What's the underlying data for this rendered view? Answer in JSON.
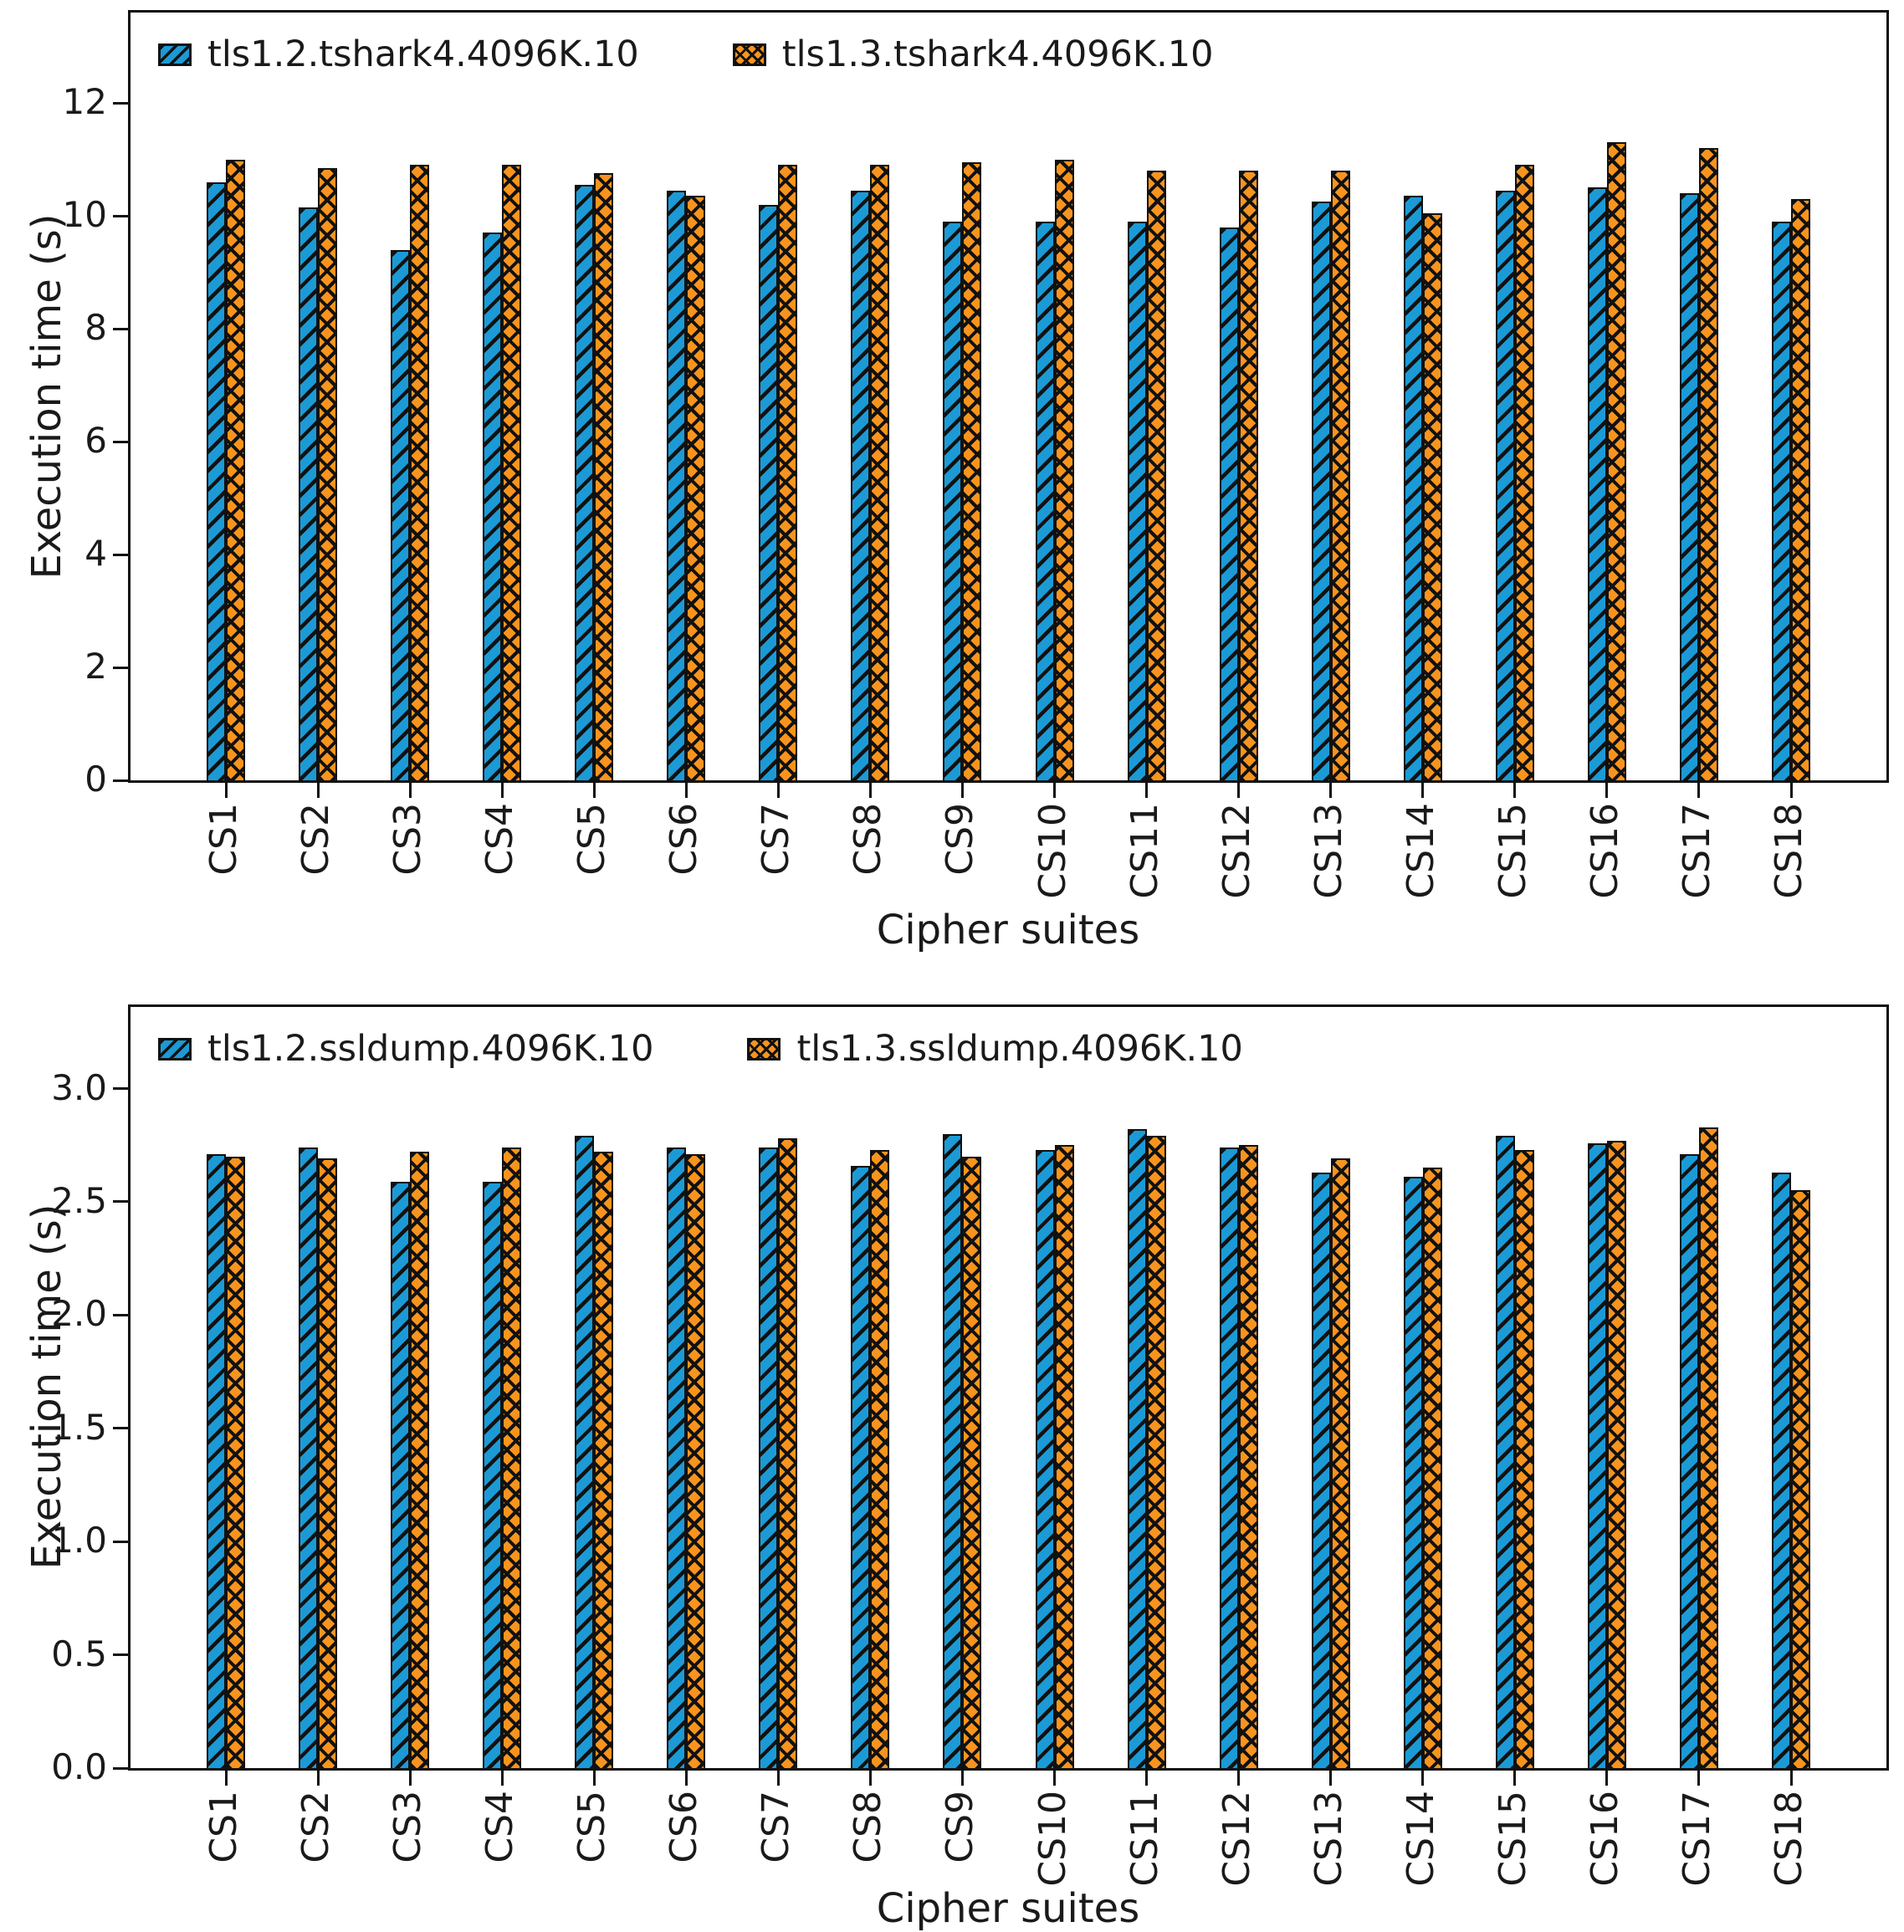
{
  "colors": {
    "tls12_fill": "#1b9ad6",
    "tls13_fill": "#f8941e",
    "hatch": "#111111",
    "axis": "#111111",
    "background": "#ffffff"
  },
  "chart_data": [
    {
      "type": "bar",
      "title": "",
      "xlabel": "Cipher suites",
      "ylabel": "Execution time (s)",
      "categories": [
        "CS1",
        "CS2",
        "CS3",
        "CS4",
        "CS5",
        "CS6",
        "CS7",
        "CS8",
        "CS9",
        "CS10",
        "CS11",
        "CS12",
        "CS13",
        "CS14",
        "CS15",
        "CS16",
        "CS17",
        "CS18"
      ],
      "yticks": [
        0,
        2,
        4,
        6,
        8,
        10,
        12
      ],
      "ytick_labels": [
        "0",
        "2",
        "4",
        "6",
        "8",
        "10",
        "12"
      ],
      "ylim": [
        0,
        13.6
      ],
      "grid": false,
      "legend_position": "upper-left",
      "series": [
        {
          "name": "tls1.2.tshark4.4096K.10",
          "key": "tls12",
          "values": [
            10.6,
            10.15,
            9.4,
            9.7,
            10.55,
            10.45,
            10.2,
            10.45,
            9.9,
            9.9,
            9.9,
            9.8,
            10.25,
            10.35,
            10.45,
            10.5,
            10.4,
            9.9
          ]
        },
        {
          "name": "tls1.3.tshark4.4096K.10",
          "key": "tls13",
          "values": [
            11.0,
            10.85,
            10.9,
            10.9,
            10.75,
            10.35,
            10.9,
            10.9,
            10.95,
            11.0,
            10.8,
            10.8,
            10.8,
            10.05,
            10.9,
            11.3,
            11.2,
            10.3
          ]
        }
      ]
    },
    {
      "type": "bar",
      "title": "",
      "xlabel": "Cipher suites",
      "ylabel": "Execution time (s)",
      "categories": [
        "CS1",
        "CS2",
        "CS3",
        "CS4",
        "CS5",
        "CS6",
        "CS7",
        "CS8",
        "CS9",
        "CS10",
        "CS11",
        "CS12",
        "CS13",
        "CS14",
        "CS15",
        "CS16",
        "CS17",
        "CS18"
      ],
      "yticks": [
        0,
        0.5,
        1.0,
        1.5,
        2.0,
        2.5,
        3.0
      ],
      "ytick_labels": [
        "0.0",
        "0.5",
        "1.0",
        "1.5",
        "2.0",
        "2.5",
        "3.0"
      ],
      "ylim": [
        0,
        3.36
      ],
      "grid": false,
      "legend_position": "upper-left",
      "series": [
        {
          "name": "tls1.2.ssldump.4096K.10",
          "key": "tls12",
          "values": [
            2.71,
            2.74,
            2.59,
            2.59,
            2.79,
            2.74,
            2.74,
            2.66,
            2.8,
            2.73,
            2.82,
            2.74,
            2.63,
            2.61,
            2.79,
            2.76,
            2.71,
            2.63
          ]
        },
        {
          "name": "tls1.3.ssldump.4096K.10",
          "key": "tls13",
          "values": [
            2.7,
            2.69,
            2.72,
            2.74,
            2.72,
            2.71,
            2.78,
            2.73,
            2.7,
            2.75,
            2.79,
            2.75,
            2.69,
            2.65,
            2.73,
            2.77,
            2.83,
            2.55
          ]
        }
      ]
    }
  ]
}
